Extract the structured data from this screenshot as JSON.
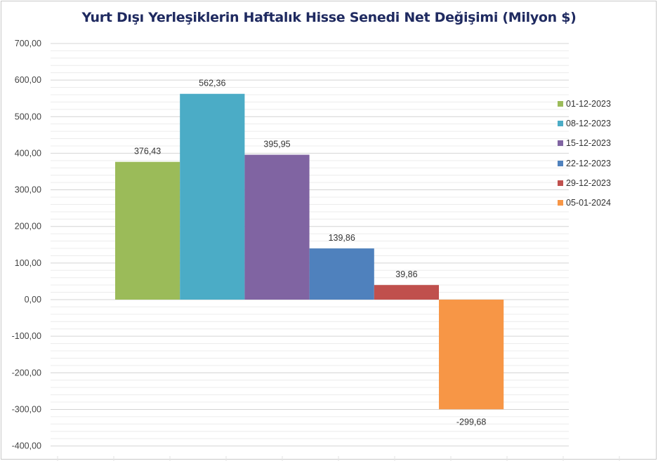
{
  "chart_data": {
    "type": "bar",
    "title": "Yurt Dışı Yerleşiklerin Haftalık Hisse Senedi Net Değişimi (Milyon $)",
    "ylim": [
      -400,
      700
    ],
    "yticks": [
      700,
      600,
      500,
      400,
      300,
      200,
      100,
      0,
      -100,
      -200,
      -300,
      -400
    ],
    "ytick_labels": [
      "700,00",
      "600,00",
      "500,00",
      "400,00",
      "300,00",
      "200,00",
      "100,00",
      "0,00",
      "-100,00",
      "-200,00",
      "-300,00",
      "-400,00"
    ],
    "grid": true,
    "legend_position": "right",
    "series": [
      {
        "name": "01-12-2023",
        "value": 376.43,
        "label": "376,43",
        "color": "#9bbb59"
      },
      {
        "name": "08-12-2023",
        "value": 562.36,
        "label": "562,36",
        "color": "#4bacc6"
      },
      {
        "name": "15-12-2023",
        "value": 395.95,
        "label": "395,95",
        "color": "#8064a2"
      },
      {
        "name": "22-12-2023",
        "value": 139.86,
        "label": "139,86",
        "color": "#4f81bd"
      },
      {
        "name": "29-12-2023",
        "value": 39.86,
        "label": "39,86",
        "color": "#c0504d"
      },
      {
        "name": "05-01-2024",
        "value": -299.68,
        "label": "-299,68",
        "color": "#f79646"
      }
    ]
  }
}
